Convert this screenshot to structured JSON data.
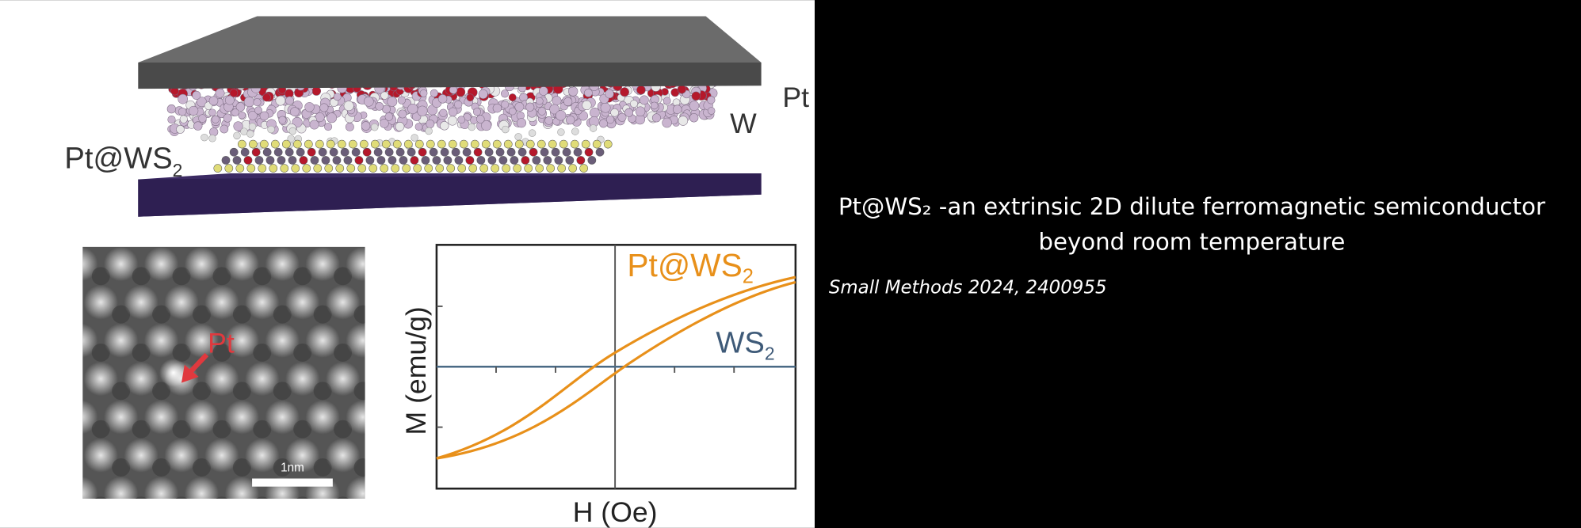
{
  "figure": {
    "top_labels": {
      "sample": {
        "main": "Pt@WS",
        "sub": "2"
      },
      "w": "W",
      "pt": "Pt"
    },
    "stem": {
      "pt_label": "Pt",
      "scale_bar": "1nm"
    },
    "plot": {
      "series_label": {
        "main": "Pt@WS",
        "sub": "2"
      },
      "reference_label": {
        "main": "WS",
        "sub": "2"
      },
      "y_label": "M (emu/g)",
      "x_label": "H (Oe)"
    }
  },
  "slide": {
    "title_lines": [
      "Pt@WS₂ -an extrinsic 2D dilute ferromagnetic semiconductor",
      "beyond room temperature"
    ],
    "citation": "Small Methods 2024, 2400955"
  }
}
